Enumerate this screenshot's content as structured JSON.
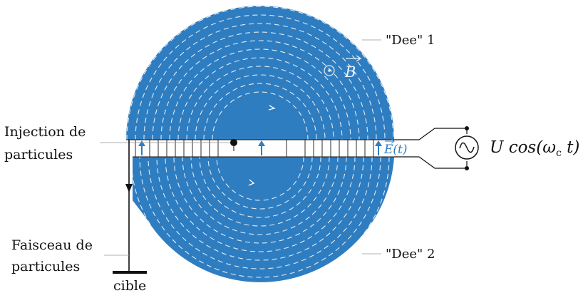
{
  "labels": {
    "dee1": "\"Dee\" 1",
    "dee2": "\"Dee\" 2",
    "magnetic_field": "B",
    "electric_field": "E(t)",
    "voltage": "U cos(ω",
    "voltage_sub": "c",
    "voltage_tail": " t)",
    "injection_line1": "Injection de",
    "injection_line2": "particules",
    "beam_line1": "Faisceau de",
    "beam_line2": "particules",
    "target": "cible"
  },
  "colors": {
    "dee_fill": "#2f7dc1",
    "field_arrow": "#2f7dc1",
    "trajectory": "#ffffff",
    "ink": "#111111"
  },
  "icons": {
    "source": "ac-source-tilde",
    "field_symbol": "out-of-page-dot"
  }
}
